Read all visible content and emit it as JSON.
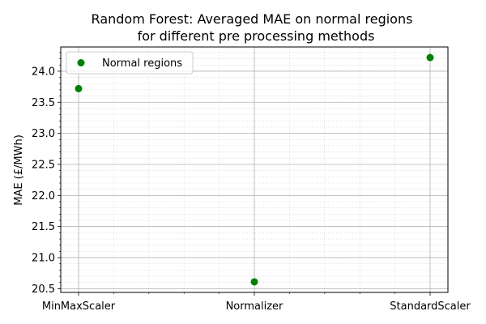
{
  "chart_data": {
    "type": "scatter",
    "title_line1": "Random Forest: Averaged MAE on normal regions",
    "title_line2": "for different pre processing methods",
    "xlabel": "",
    "ylabel": "MAE (£/MWh)",
    "categories": [
      "MinMaxScaler",
      "Normalizer",
      "StandardScaler"
    ],
    "series": [
      {
        "name": "Normal regions",
        "values": [
          23.72,
          20.61,
          24.22
        ],
        "color": "#008000"
      }
    ],
    "ylim": [
      20.44,
      24.39
    ],
    "yticks": [
      "20.5",
      "21.0",
      "21.5",
      "22.0",
      "22.5",
      "23.0",
      "23.5",
      "24.0"
    ],
    "grid": true,
    "minor_grid": true,
    "legend_position": "top-left"
  }
}
